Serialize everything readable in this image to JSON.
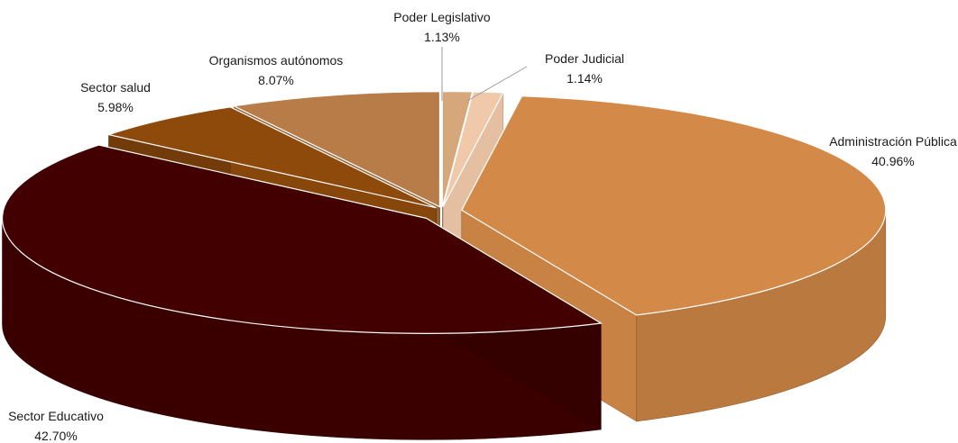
{
  "chart_data": {
    "type": "pie",
    "style": "3d-exploded",
    "title": "",
    "legend": "none",
    "slices": [
      {
        "label": "Poder Legislativo",
        "value_label": "1.13%",
        "value": 1.13,
        "color": "#D7A77C"
      },
      {
        "label": "Poder Judicial",
        "value_label": "1.14%",
        "value": 1.14,
        "color": "#F0C9AA"
      },
      {
        "label": "Administración Pública",
        "value_label": "40.96%",
        "value": 40.96,
        "color": "#D38948"
      },
      {
        "label": "Sector Educativo",
        "value_label": "42.70%",
        "value": 42.7,
        "color": "#420000"
      },
      {
        "label": "Sector salud",
        "value_label": "5.98%",
        "value": 5.98,
        "color": "#8E4A0B"
      },
      {
        "label": "Organismos autónomos",
        "value_label": "8.07%",
        "value": 8.07,
        "color": "#B87C48"
      }
    ]
  }
}
